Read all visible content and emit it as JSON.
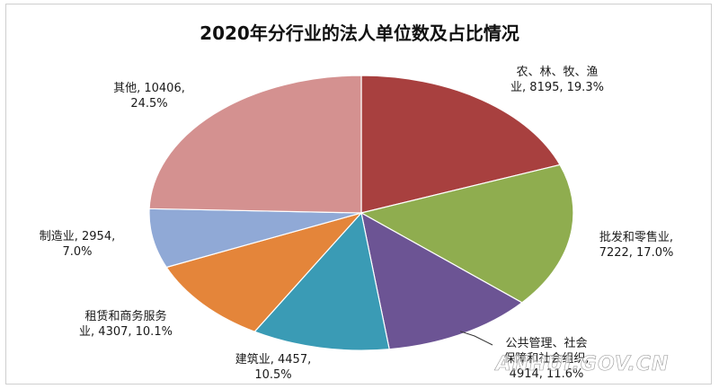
{
  "chart_data": {
    "type": "pie",
    "title": "2020年分行业的法人单位数及占比情况",
    "slices": [
      {
        "name": "农、林、牧、渔业",
        "value": 8195,
        "percent": "19.3%",
        "color": "#a8403f"
      },
      {
        "name": "批发和零售业",
        "value": 7222,
        "percent": "17.0%",
        "color": "#8fad4f"
      },
      {
        "name": "公共管理、社会保障和社会组织",
        "value": 4914,
        "percent": "11.6%",
        "color": "#6c5494"
      },
      {
        "name": "建筑业",
        "value": 4457,
        "percent": "10.5%",
        "color": "#3a9bb5"
      },
      {
        "name": "租赁和商务服务业",
        "value": 4307,
        "percent": "10.1%",
        "color": "#e4853a"
      },
      {
        "name": "制造业",
        "value": 2954,
        "percent": "7.0%",
        "color": "#90a9d6"
      },
      {
        "name": "其他",
        "value": 10406,
        "percent": "24.5%",
        "color": "#d49190"
      }
    ],
    "labels": [
      [
        "农、林、牧、渔",
        "业, 8195, 19.3%"
      ],
      [
        "批发和零售业,",
        "7222, 17.0%"
      ],
      [
        "公共管理、社会",
        "保障和社会组织,",
        "4914, 11.6%"
      ],
      [
        "建筑业, 4457,",
        "10.5%"
      ],
      [
        "租赁和商务服务",
        "业, 4307, 10.1%"
      ],
      [
        "制造业, 2954,",
        "7.0%"
      ],
      [
        "其他, 10406,",
        "24.5%"
      ]
    ]
  },
  "watermark": "ANHUI.GOV.CN"
}
